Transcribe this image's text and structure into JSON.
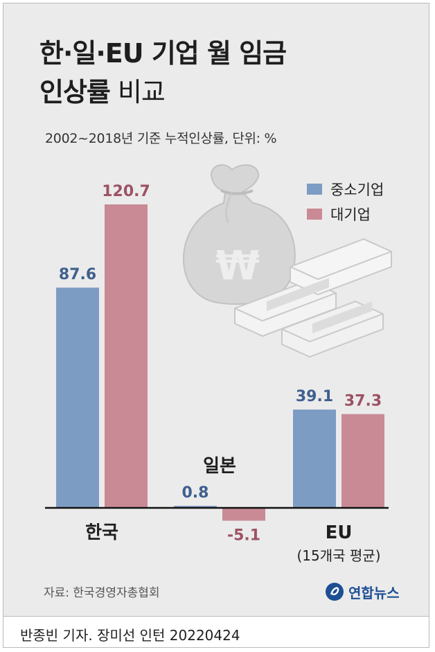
{
  "title_line1": "한·일·EU 기업 월 임금",
  "title_line2_bold": "인상률",
  "title_line2_light": " 비교",
  "subtitle": "2002~2018년 기준 누적인상률, 단위: %",
  "source": "자료: 한국경영자총협회",
  "brand": "연합뉴스",
  "credit": "반종빈 기자. 장미선 인턴  20220424",
  "colors": {
    "small": "#7d9cc4",
    "large": "#c98a96",
    "small_text": "#3f5f8f",
    "large_text": "#9c5264",
    "axis": "#111111"
  },
  "chart_data": {
    "type": "bar",
    "categories": [
      "한국",
      "일본",
      "EU"
    ],
    "category_sublabels": [
      "",
      "",
      "(15개국 평균)"
    ],
    "series": [
      {
        "name": "중소기업",
        "values": [
          87.6,
          0.8,
          39.1
        ]
      },
      {
        "name": "대기업",
        "values": [
          120.7,
          -5.1,
          37.3
        ]
      }
    ],
    "value_labels": [
      [
        "87.6",
        "0.8",
        "39.1"
      ],
      [
        "120.7",
        "-5.1",
        "37.3"
      ]
    ]
  }
}
